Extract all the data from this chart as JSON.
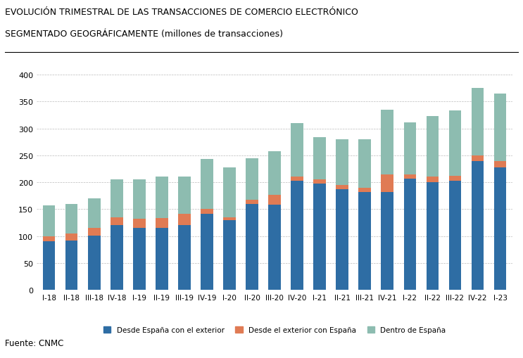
{
  "categories": [
    "I-18",
    "II-18",
    "III-18",
    "IV-18",
    "I-19",
    "II-19",
    "III-19",
    "IV-19",
    "I-20",
    "II-20",
    "III-20",
    "IV-20",
    "I-21",
    "II-21",
    "III-21",
    "IV-21",
    "I-22",
    "II-22",
    "III-22",
    "IV-22",
    "I-23"
  ],
  "desde_espana": [
    90,
    92,
    101,
    120,
    115,
    115,
    121,
    141,
    130,
    160,
    158,
    203,
    198,
    187,
    182,
    182,
    207,
    200,
    203,
    240,
    228
  ],
  "desde_exterior": [
    10,
    13,
    14,
    15,
    17,
    18,
    20,
    10,
    5,
    8,
    18,
    7,
    8,
    8,
    8,
    33,
    8,
    10,
    9,
    10,
    12
  ],
  "dentro_espana": [
    57,
    55,
    55,
    71,
    73,
    78,
    70,
    92,
    92,
    77,
    82,
    100,
    78,
    85,
    90,
    120,
    96,
    113,
    121,
    125,
    125
  ],
  "colors": {
    "desde_espana": "#2E6DA4",
    "desde_exterior": "#E07B54",
    "dentro_espana": "#8DBCB0"
  },
  "title_line1": "EVOLUCIÓN TRIMESTRAL DE LAS TRANSACCIONES DE COMERCIO ELECTRÓNICO",
  "title_line2": "SEGMENTADO GEOGRÁFICAMENTE (millones de transacciones)",
  "legend_labels": [
    "Desde España con el exterior",
    "Desde el exterior con España",
    "Dentro de España"
  ],
  "ylim": [
    0,
    420
  ],
  "yticks": [
    0,
    50,
    100,
    150,
    200,
    250,
    300,
    350,
    400
  ],
  "source": "Fuente: CNMC",
  "bg_color": "#FFFFFF",
  "grid_color": "#BBBBBB"
}
